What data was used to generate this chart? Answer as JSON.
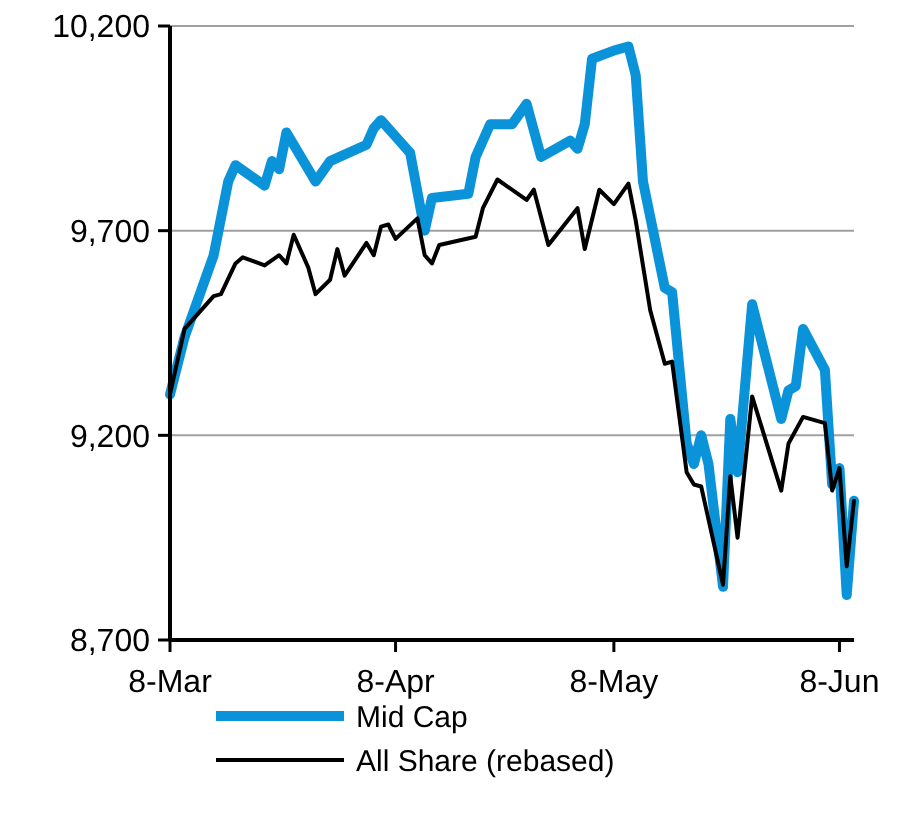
{
  "chart_data": {
    "type": "line",
    "x": [
      "--03-08",
      "--03-10",
      "--03-14",
      "--03-16",
      "--03-17",
      "--03-21",
      "--03-22",
      "--03-23",
      "--03-24",
      "--03-28",
      "--03-30",
      "--04-04",
      "--04-05",
      "--04-06",
      "--04-08",
      "--04-10",
      "--04-12",
      "--04-13",
      "--04-18",
      "--04-19",
      "--04-21",
      "--04-24",
      "--04-26",
      "--04-28",
      "--05-02",
      "--05-03",
      "--05-04",
      "--05-05",
      "--05-08",
      "--05-10",
      "--05-11",
      "--05-12",
      "--05-15",
      "--05-16",
      "--05-18",
      "--05-19",
      "--05-20",
      "--05-21",
      "--05-23",
      "--05-24",
      "--05-25",
      "--05-27",
      "--05-31",
      "--06-01",
      "--06-02",
      "--06-03",
      "--06-06",
      "--06-07",
      "--06-08",
      "--06-09",
      "--06-10"
    ],
    "series": [
      {
        "name": "Mid Cap",
        "color": "#0a93d8",
        "values": [
          9300,
          9440,
          9640,
          9820,
          9860,
          9810,
          9870,
          9850,
          9940,
          9820,
          9870,
          9910,
          9950,
          9970,
          9930,
          9890,
          9700,
          9780,
          9790,
          9880,
          9960,
          9960,
          10010,
          9880,
          9920,
          9900,
          9960,
          10120,
          10140,
          10150,
          10080,
          9820,
          9560,
          9550,
          9180,
          9130,
          9200,
          9130,
          8830,
          9240,
          9110,
          9520,
          9240,
          9310,
          9320,
          9460,
          9360,
          9080,
          9120,
          8810,
          9040
        ]
      },
      {
        "name": "All Share (rebased)",
        "color": "#000000",
        "x": [
          "--03-08",
          "--03-10",
          "--03-14",
          "--03-15",
          "--03-17",
          "--03-18",
          "--03-21",
          "--03-23",
          "--03-24",
          "--03-25",
          "--03-27",
          "--03-28",
          "--03-30",
          "--03-31",
          "--04-01",
          "--04-04",
          "--04-05",
          "--04-06",
          "--04-07",
          "--04-08",
          "--04-11",
          "--04-12",
          "--04-13",
          "--04-14",
          "--04-19",
          "--04-20",
          "--04-22",
          "--04-26",
          "--04-27",
          "--04-29",
          "--05-03",
          "--05-04",
          "--05-06",
          "--05-08",
          "--05-10",
          "--05-11",
          "--05-13",
          "--05-15",
          "--05-16",
          "--05-18",
          "--05-19",
          "--05-20",
          "--05-23",
          "--05-24",
          "--05-25",
          "--05-27",
          "--05-31",
          "--06-01",
          "--06-03",
          "--06-06",
          "--06-07",
          "--06-08",
          "--06-09",
          "--06-10"
        ],
        "values": [
          9300,
          9460,
          9540,
          9545,
          9620,
          9635,
          9615,
          9640,
          9620,
          9690,
          9610,
          9545,
          9580,
          9655,
          9590,
          9670,
          9640,
          9710,
          9715,
          9680,
          9730,
          9640,
          9620,
          9665,
          9685,
          9755,
          9825,
          9775,
          9800,
          9665,
          9755,
          9655,
          9800,
          9765,
          9815,
          9725,
          9505,
          9375,
          9380,
          9110,
          9080,
          9075,
          8835,
          9100,
          8950,
          9295,
          9065,
          9180,
          9245,
          9230,
          9065,
          9120,
          8880,
          9040
        ]
      }
    ],
    "xlim": [
      "--03-08",
      "--06-10"
    ],
    "xticks": [
      {
        "value": "--03-08",
        "label": "8-Mar"
      },
      {
        "value": "--04-08",
        "label": "8-Apr"
      },
      {
        "value": "--05-08",
        "label": "8-May"
      },
      {
        "value": "--06-08",
        "label": "8-Jun"
      }
    ],
    "ylim": [
      8700,
      10200
    ],
    "yticks": [
      {
        "value": 8700,
        "label": "8,700"
      },
      {
        "value": 9200,
        "label": "9,200"
      },
      {
        "value": 9700,
        "label": "9,700"
      },
      {
        "value": 10200,
        "label": "10,200"
      }
    ],
    "grid": "y",
    "legend": "bottom",
    "marker": "none",
    "line_style": "solid"
  }
}
